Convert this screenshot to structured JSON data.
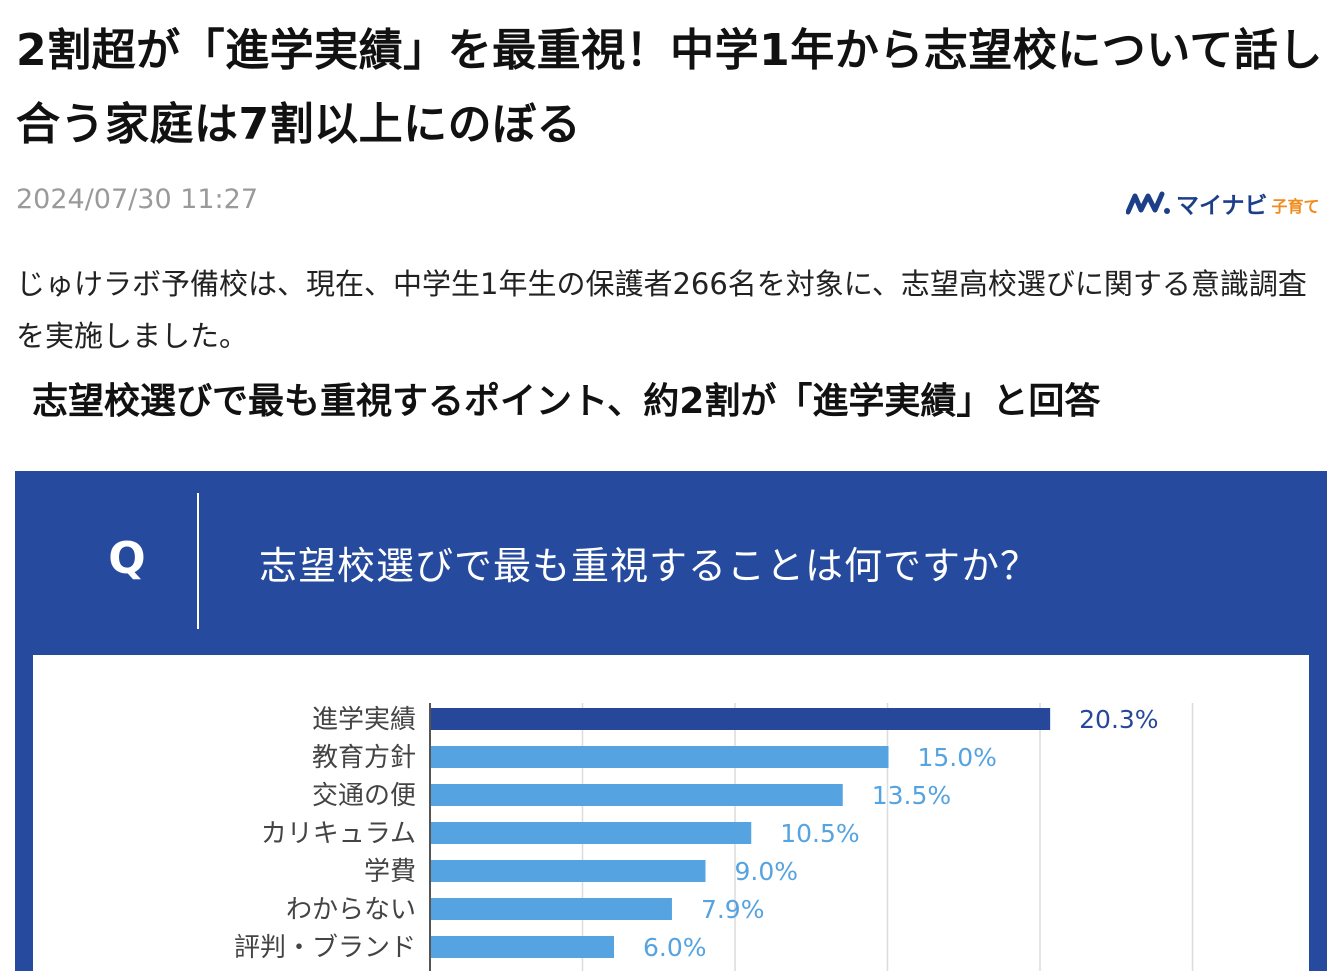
{
  "article": {
    "headline": "2割超が「進学実績」を最重視！中学1年から志望校について話し合う家庭は7割以上にのぼる",
    "date": "2024/07/30 11:27",
    "logo_word": "マイナビ",
    "logo_sub": "子育て",
    "lead": "じゅけラボ予備校は、現在、中学生1年生の保護者266名を対象に、志望高校選びに関する意識調査を実施しました。",
    "subheading": "志望校選びで最も重視するポイント、約2割が「進学実績」と回答"
  },
  "figure": {
    "q_label": "Q",
    "question": "志望校選びで最も重視することは何ですか？"
  },
  "colors": {
    "navy": "#254a9e",
    "bar_highlight": "#27479a",
    "bar_normal": "#55a3e0",
    "label_highlight": "#27479a",
    "label_normal": "#55a3e0",
    "grid": "#dcdcdc",
    "axis": "#555555"
  },
  "chart_data": {
    "type": "bar",
    "orientation": "horizontal",
    "categories": [
      "進学実績",
      "教育方針",
      "交通の便",
      "カリキュラム",
      "学費",
      "わからない",
      "評判・ブランド"
    ],
    "values": [
      20.3,
      15.0,
      13.5,
      10.5,
      9.0,
      7.9,
      6.0
    ],
    "value_labels": [
      "20.3%",
      "15.0%",
      "13.5%",
      "10.5%",
      "9.0%",
      "7.9%",
      "6.0%"
    ],
    "highlight_index": 0,
    "xlim": [
      0,
      25
    ],
    "grid": true,
    "title": "",
    "xlabel": "",
    "ylabel": ""
  }
}
